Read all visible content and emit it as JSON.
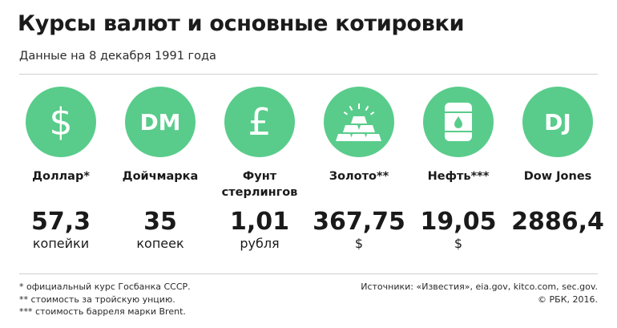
{
  "header": {
    "title": "Курсы валют и основные котировки",
    "subtitle": "Данные на 8 декабря 1991 года"
  },
  "accent_color": "#59cc8b",
  "items": [
    {
      "icon": "dollar-icon",
      "symbol": "$",
      "label": "Доллар*",
      "value": "57,3",
      "unit": "копейки"
    },
    {
      "icon": "deutschmark-icon",
      "symbol": "DM",
      "label": "Дойчмарка",
      "value": "35",
      "unit": "копеек"
    },
    {
      "icon": "pound-icon",
      "symbol": "£",
      "label": "Фунт стерлингов",
      "value": "1,01",
      "unit": "рубля"
    },
    {
      "icon": "gold-bars-icon",
      "symbol": "",
      "label": "Золото**",
      "value": "367,75",
      "unit": "$"
    },
    {
      "icon": "oil-barrel-icon",
      "symbol": "",
      "label": "Нефть***",
      "value": "19,05",
      "unit": "$"
    },
    {
      "icon": "dow-jones-icon",
      "symbol": "DJ",
      "label": "Dow Jones",
      "value": "2886,4",
      "unit": ""
    }
  ],
  "footnotes": [
    "* официальный курс Госбанка СССР.",
    "** стоимость за тройскую унцию.",
    "*** стоимость барреля марки Brent."
  ],
  "sources": {
    "text": "Источники: «Известия», eia.gov, kitco.com, sec.gov.",
    "copyright": "© РБК, 2016."
  }
}
